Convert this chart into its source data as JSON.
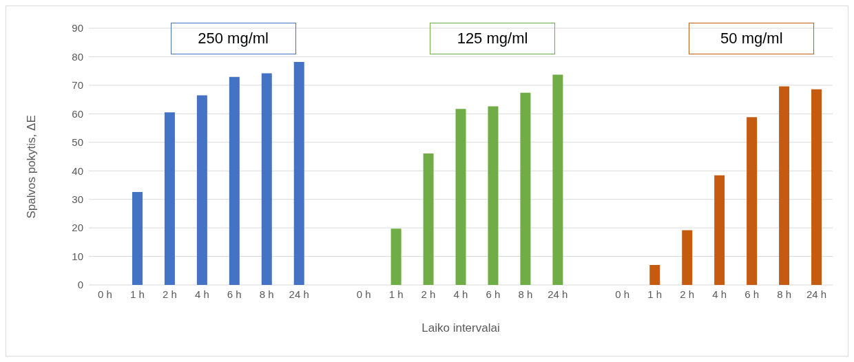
{
  "chart_data": {
    "type": "bar",
    "xlabel": "Laiko intervalai",
    "ylabel": "Spalvos pokytis, ΔE",
    "categories": [
      "0 h",
      "1 h",
      "2 h",
      "4 h",
      "6 h",
      "8 h",
      "24 h",
      null,
      "0 h",
      "1 h",
      "2 h",
      "4 h",
      "6 h",
      "8 h",
      "24 h",
      null,
      "0 h",
      "1 h",
      "2 h",
      "4 h",
      "6 h",
      "8 h",
      "24 h"
    ],
    "values": [
      0,
      32.6,
      60.5,
      66.5,
      72.9,
      74.2,
      78.2,
      null,
      0,
      19.7,
      46.1,
      61.7,
      62.6,
      67.4,
      73.7,
      null,
      0,
      7.0,
      19.2,
      38.4,
      58.8,
      69.6,
      68.6
    ],
    "colors": [
      "#4472c4",
      "#4472c4",
      "#4472c4",
      "#4472c4",
      "#4472c4",
      "#4472c4",
      "#4472c4",
      null,
      "#70ad47",
      "#70ad47",
      "#70ad47",
      "#70ad47",
      "#70ad47",
      "#70ad47",
      "#70ad47",
      null,
      "#c55a11",
      "#c55a11",
      "#c55a11",
      "#c55a11",
      "#c55a11",
      "#c55a11",
      "#c55a11"
    ],
    "annotations": [
      "250 mg/ml",
      "125 mg/ml",
      "50 mg/ml"
    ],
    "ylim": [
      0,
      90
    ],
    "yticks": [
      0,
      10,
      20,
      30,
      40,
      50,
      60,
      70,
      80,
      90
    ],
    "grid": "y"
  }
}
